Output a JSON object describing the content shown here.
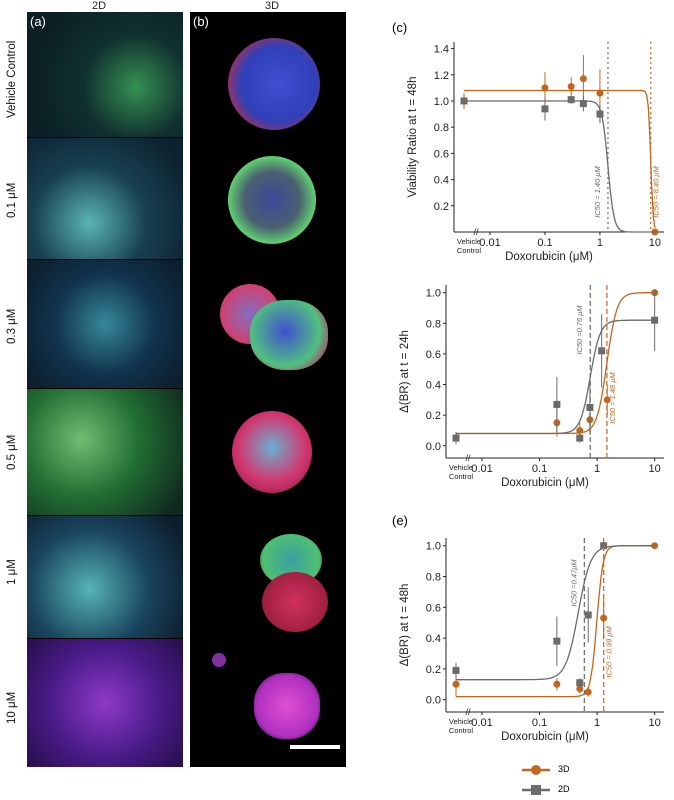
{
  "figure": {
    "col_2d_title": "2D",
    "col_3d_title": "3D",
    "panel_a": "(a)",
    "panel_b": "(b)",
    "panel_c": "(c)",
    "panel_e": "(e)",
    "row_labels": [
      "Vehicle Control",
      "0.1 μM",
      "0.3 μM",
      "0.5 μM",
      "1 μM",
      "10 μM"
    ]
  },
  "legend": [
    {
      "name": "3D",
      "color": "#c1661e",
      "marker": "circle"
    },
    {
      "name": "2D",
      "color": "#6b6b6b",
      "marker": "square"
    }
  ],
  "chart_data": [
    {
      "id": "c",
      "type": "scatter",
      "xscale": "log",
      "xlabel": "Doxorubicin (μM)",
      "ylabel": "Viability Ratio at t = 48h",
      "ylim": [
        0,
        1.45
      ],
      "yticks": [
        "0.2",
        "0.4",
        "0.6",
        "0.8",
        "1.0",
        "1.2",
        "1.4"
      ],
      "xticks": [
        "0.01",
        "0.1",
        "1",
        "10"
      ],
      "vehicle_label": [
        "Vehicle",
        "Control"
      ],
      "series": [
        {
          "name": "3D",
          "color": "#c1661e",
          "x": [
            0.1,
            0.3,
            0.5,
            1,
            10
          ],
          "y": [
            1.1,
            1.11,
            1.17,
            1.06,
            0.0
          ],
          "err": [
            0.12,
            0.07,
            0.18,
            0.18,
            0.0
          ],
          "vehicle": {
            "y": 1.0,
            "err": 0.06
          },
          "fit": {
            "ic50": 8.4,
            "top": 1.08,
            "bottom": 0.0,
            "hill": 20
          }
        },
        {
          "name": "2D",
          "color": "#6b6b6b",
          "x": [
            0.1,
            0.3,
            0.5,
            1
          ],
          "y": [
            0.94,
            1.01,
            0.98,
            0.9
          ],
          "err": [
            0.09,
            0.03,
            0.06,
            0.07
          ],
          "vehicle": {
            "y": 1.0,
            "err": 0.03
          },
          "fit": {
            "ic50": 1.4,
            "top": 1.0,
            "bottom": 0.0,
            "hill": 8
          }
        }
      ],
      "ic50_labels": [
        {
          "text": "IC50 = 1.40 μM",
          "x": 1.4,
          "color": "#6b6b6b"
        },
        {
          "text": "IC50 = 8.40 μM",
          "x": 8.4,
          "color": "#c1661e"
        }
      ]
    },
    {
      "id": "d",
      "type": "scatter",
      "xscale": "log",
      "xlabel": "Doxorubicin (μM)",
      "ylabel": "Δ(BR) at t = 24h",
      "ylim": [
        -0.08,
        1.05
      ],
      "yticks": [
        "0.0",
        "0.2",
        "0.4",
        "0.6",
        "0.8",
        "1.0"
      ],
      "xticks": [
        "0.01",
        "0.1",
        "1",
        "10"
      ],
      "vehicle_label": [
        "Vehicle",
        "Control"
      ],
      "series": [
        {
          "name": "3D",
          "color": "#c1661e",
          "x": [
            0.2,
            0.5,
            0.75,
            1.5,
            10
          ],
          "y": [
            0.15,
            0.1,
            0.17,
            0.3,
            1.0
          ],
          "err": [
            0.09,
            0.05,
            0.06,
            0.1,
            0.0
          ],
          "vehicle": {
            "y": 0.05,
            "err": 0.03
          },
          "fit": {
            "ic50": 1.48,
            "top": 1.0,
            "bottom": 0.08,
            "hill": 5
          }
        },
        {
          "name": "2D",
          "color": "#6b6b6b",
          "x": [
            0.2,
            0.5,
            0.75,
            1.2,
            10
          ],
          "y": [
            0.27,
            0.05,
            0.25,
            0.62,
            0.82
          ],
          "err": [
            0.18,
            0.03,
            0.18,
            0.24,
            0.2
          ],
          "vehicle": {
            "y": 0.05,
            "err": 0.04
          },
          "fit": {
            "ic50": 0.76,
            "top": 0.82,
            "bottom": 0.08,
            "hill": 5
          }
        }
      ],
      "ic50_labels": [
        {
          "text": "IC50 =0.76 μM",
          "x": 0.76,
          "color": "#6b6b6b"
        },
        {
          "text": "IC50 = 1.48 μM",
          "x": 1.48,
          "color": "#c1661e"
        }
      ]
    },
    {
      "id": "e",
      "type": "scatter",
      "xscale": "log",
      "xlabel": "Doxorubicin (μM)",
      "ylabel": "Δ(BR) at t = 48h",
      "ylim": [
        -0.08,
        1.05
      ],
      "yticks": [
        "0.0",
        "0.2",
        "0.4",
        "0.6",
        "0.8",
        "1.0"
      ],
      "xticks": [
        "0.01",
        "0.1",
        "1",
        "10"
      ],
      "vehicle_label": [
        "Vehicle",
        "Control"
      ],
      "series": [
        {
          "name": "3D",
          "color": "#c1661e",
          "x": [
            0.2,
            0.5,
            0.7,
            1.3,
            10
          ],
          "y": [
            0.1,
            0.07,
            0.05,
            0.53,
            1.0
          ],
          "err": [
            0.04,
            0.03,
            0.03,
            0.13,
            0.0
          ],
          "vehicle": {
            "y": 0.1,
            "err": 0.08
          },
          "fit": {
            "ic50": 0.99,
            "top": 1.0,
            "bottom": 0.02,
            "hill": 8
          }
        },
        {
          "name": "2D",
          "color": "#6b6b6b",
          "x": [
            0.2,
            0.5,
            0.7,
            1.3
          ],
          "y": [
            0.38,
            0.11,
            0.55,
            1.0
          ],
          "err": [
            0.16,
            0.03,
            0.18,
            0.0
          ],
          "vehicle": {
            "y": 0.19,
            "err": 0.05
          },
          "fit": {
            "ic50": 0.47,
            "top": 1.0,
            "bottom": 0.13,
            "hill": 4
          }
        }
      ],
      "ic50_labels": [
        {
          "text": "IC50 =0.47μM",
          "x": 0.6,
          "color": "#6b6b6b"
        },
        {
          "text": "IC50 = 0.99 μM",
          "x": 1.3,
          "color": "#c1661e"
        }
      ]
    }
  ]
}
